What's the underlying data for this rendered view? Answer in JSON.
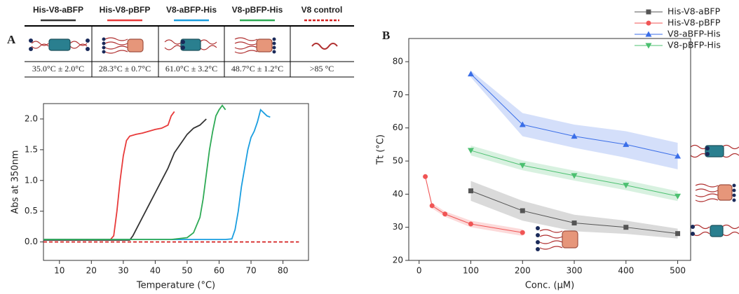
{
  "chart_data": [
    {
      "type": "line",
      "panel": "A",
      "xlabel": "Temperature (°C)",
      "ylabel": "Abs at 350nm",
      "xlim": [
        5,
        88
      ],
      "ylim": [
        -0.3,
        2.25
      ],
      "xticks": [
        10,
        20,
        30,
        40,
        50,
        60,
        70,
        80
      ],
      "yticks": [
        {
          "value": 0,
          "label": "0.0"
        },
        {
          "value": 0.5,
          "label": "0.5"
        },
        {
          "value": 1,
          "label": "1.0"
        },
        {
          "value": 1.5,
          "label": "1.5"
        },
        {
          "value": 2,
          "label": "2.0"
        }
      ],
      "tt_labels": [
        "35.0°C ± 2.0°C",
        "28.3°C ± 0.7°C",
        "61.0°C ± 3.2°C",
        "48.7°C ± 1.2°C",
        ">85 °C"
      ],
      "series": [
        {
          "name": "His-V8-aBFP",
          "color": "#333333",
          "x": [
            5,
            32,
            33,
            34,
            36,
            38,
            40,
            42,
            44,
            46,
            48,
            50,
            52,
            54,
            56
          ],
          "values": [
            0.03,
            0.03,
            0.1,
            0.2,
            0.4,
            0.6,
            0.8,
            1.0,
            1.2,
            1.45,
            1.6,
            1.75,
            1.85,
            1.9,
            2.0
          ]
        },
        {
          "name": "His-V8-pBFP",
          "color": "#e83a3a",
          "x": [
            5,
            26,
            27,
            28,
            29,
            30,
            31,
            32,
            34,
            36,
            38,
            40,
            42,
            44,
            45,
            46
          ],
          "values": [
            0.04,
            0.04,
            0.1,
            0.5,
            1.0,
            1.4,
            1.65,
            1.72,
            1.75,
            1.77,
            1.8,
            1.83,
            1.85,
            1.9,
            2.05,
            2.12
          ]
        },
        {
          "name": "V8-aBFP-His",
          "color": "#1a9ee0",
          "x": [
            5,
            62,
            64,
            65,
            66,
            67,
            68,
            69,
            70,
            71,
            72,
            73,
            74,
            75,
            76
          ],
          "values": [
            0.04,
            0.04,
            0.05,
            0.2,
            0.5,
            0.9,
            1.2,
            1.5,
            1.7,
            1.8,
            1.95,
            2.15,
            2.1,
            2.05,
            2.03
          ]
        },
        {
          "name": "V8-pBFP-His",
          "color": "#2eaa55",
          "x": [
            5,
            45,
            50,
            52,
            54,
            55,
            56,
            57,
            58,
            59,
            60,
            61,
            62
          ],
          "values": [
            0.04,
            0.04,
            0.07,
            0.15,
            0.4,
            0.7,
            1.1,
            1.5,
            1.8,
            2.05,
            2.15,
            2.22,
            2.15
          ]
        },
        {
          "name": "V8 control",
          "color": "#d42020",
          "dashed": true,
          "x": [
            5,
            85
          ],
          "values": [
            0,
            0
          ]
        }
      ]
    },
    {
      "type": "line",
      "panel": "B",
      "xlabel": "Conc. (μM)",
      "ylabel": "Tt (°C)",
      "xlim": [
        -20,
        525
      ],
      "ylim": [
        20,
        87
      ],
      "xticks": [
        0,
        100,
        200,
        300,
        400,
        500
      ],
      "yticks": [
        20,
        30,
        40,
        50,
        60,
        70,
        80
      ],
      "series": [
        {
          "name": "His-V8-aBFP",
          "color": "#555555",
          "marker": "square",
          "x": [
            100,
            200,
            300,
            400,
            500
          ],
          "values": [
            41,
            35,
            31.3,
            30,
            28.1
          ],
          "errors": [
            3,
            3,
            2.5,
            2,
            1.5
          ]
        },
        {
          "name": "His-V8-pBFP",
          "color": "#f05555",
          "marker": "circle",
          "x": [
            12,
            25,
            50,
            100,
            200
          ],
          "values": [
            45.3,
            36.5,
            34,
            31,
            28.4
          ],
          "errors": [
            0.5,
            0.8,
            0.8,
            1,
            1
          ]
        },
        {
          "name": "V8-aBFP-His",
          "color": "#3a6ee8",
          "marker": "triangle-up",
          "x": [
            100,
            200,
            300,
            400,
            500
          ],
          "values": [
            76.3,
            61,
            57.5,
            55,
            51.5
          ],
          "errors": [
            1,
            3.5,
            3.5,
            4,
            4
          ]
        },
        {
          "name": "V8-pBFP-His",
          "color": "#4cc070",
          "marker": "triangle-down",
          "x": [
            100,
            200,
            300,
            400,
            500
          ],
          "values": [
            53.2,
            48.7,
            45.6,
            42.7,
            39.4
          ],
          "errors": [
            1.5,
            1.5,
            1.5,
            1.5,
            1.5
          ]
        }
      ]
    }
  ]
}
